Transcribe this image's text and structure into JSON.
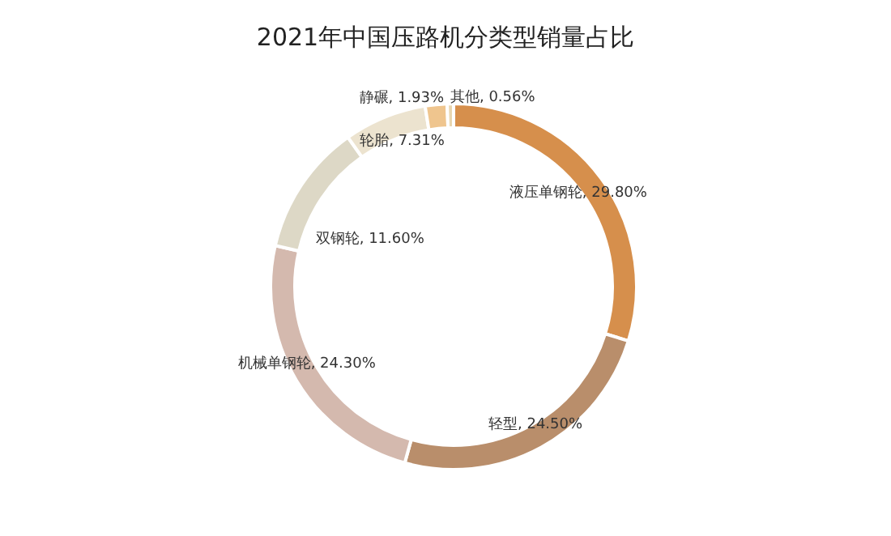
{
  "chart_data": {
    "type": "donut",
    "title": "2021年中国压路机分类型销量占比",
    "categories": [
      "液压单钢轮",
      "轻型",
      "机械单钢轮",
      "双钢轮",
      "轮胎",
      "静碾",
      "其他"
    ],
    "values": [
      29.8,
      24.5,
      24.3,
      11.6,
      7.31,
      1.93,
      0.56
    ],
    "value_labels": [
      "29.80%",
      "24.50%",
      "24.30%",
      "11.60%",
      "7.31%",
      "1.93%",
      "0.56%"
    ],
    "colors": [
      "#d68f4c",
      "#b98e6b",
      "#d4b9ae",
      "#ddd8c6",
      "#ece3cf",
      "#efc58e",
      "#e8d6b0"
    ],
    "data_labels": true
  }
}
